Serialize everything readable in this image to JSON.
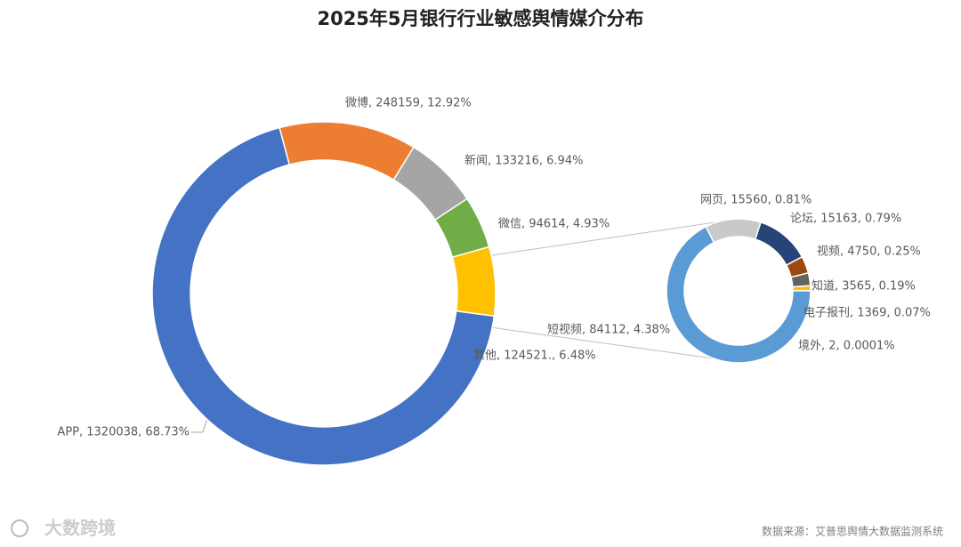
{
  "chart_data": {
    "type": "doughnut-of-doughnut",
    "title": "2025年5月银行行业敏感舆情媒介分布",
    "values": [
      248159,
      133216,
      94614,
      124521,
      1320038
    ],
    "colors": [
      "#ed7d31",
      "#a5a5a5",
      "#70ad47",
      "#ffc000",
      "#4472c4"
    ],
    "value_labels": [
      "微博, 248159, 12.92%",
      "新闻, 133216, 6.94%",
      "微信, 94614, 4.93%",
      "其他, 124521., 6.48%",
      "APP, 1320038, 68.73%"
    ],
    "sub": {
      "values": [
        15560,
        15163,
        4750,
        3565,
        1369,
        2,
        84112
      ],
      "colors": [
        "#c9c9c9",
        "#264478",
        "#9e480e",
        "#636363",
        "#ffc000",
        "#4472c4",
        "#5b9bd5"
      ],
      "value_labels": [
        "网页, 15560, 0.81%",
        "论坛, 15163, 0.79%",
        "视频, 4750, 0.25%",
        "知道, 3565, 0.19%",
        "电子报刊, 1369, 0.07%",
        "境外, 2, 0.0001%",
        "短视频, 84112, 4.38%"
      ]
    },
    "source": "数据来源：艾普思舆情大数据监测系统",
    "logo": "大数跨境"
  }
}
